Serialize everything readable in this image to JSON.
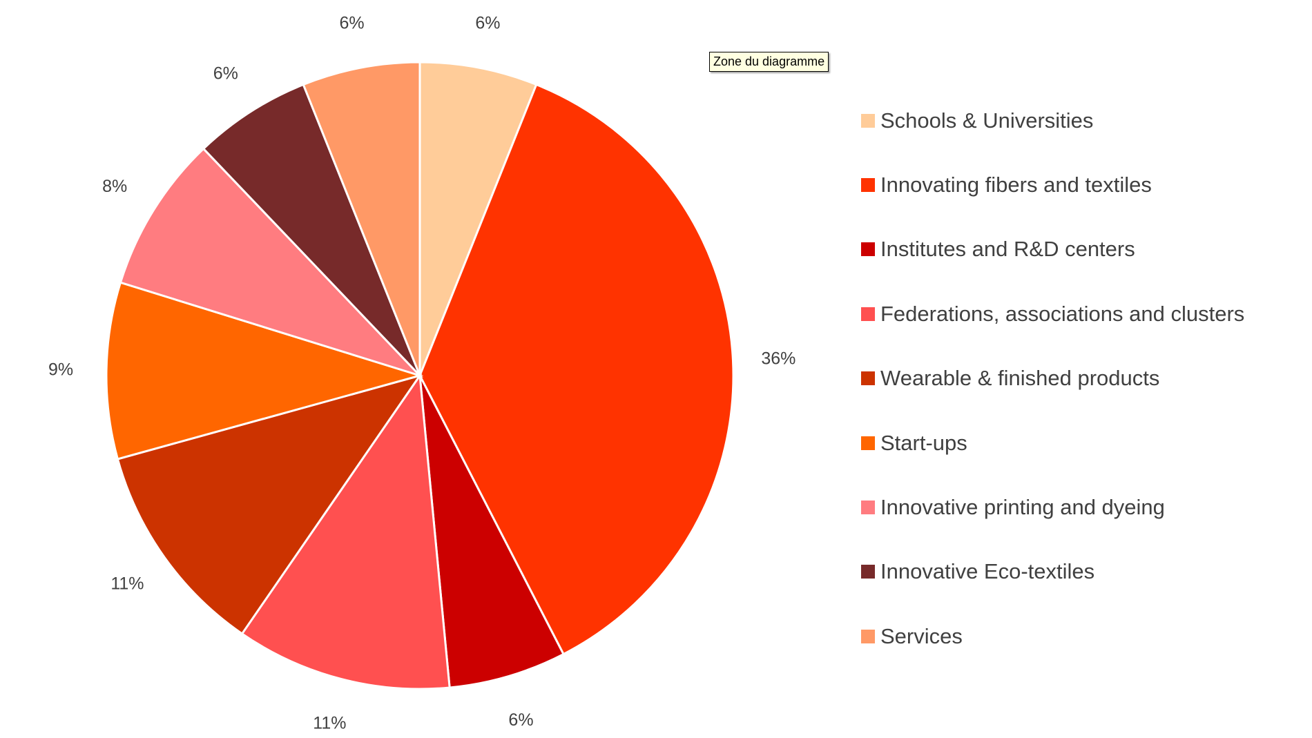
{
  "tooltip": "Zone du diagramme",
  "chart_data": {
    "type": "pie",
    "categories": [
      "Schools & Universities",
      "Innovating fibers and textiles",
      "Institutes and R&D centers",
      "Federations, associations and clusters",
      "Wearable & finished products",
      "Start-ups",
      "Innovative printing and dyeing",
      "Innovative Eco-textiles",
      "Services"
    ],
    "values": [
      6,
      36,
      6,
      11,
      11,
      9,
      8,
      6,
      6
    ],
    "labels": [
      "6%",
      "36%",
      "6%",
      "11%",
      "11%",
      "9%",
      "8%",
      "6%",
      "6%"
    ],
    "colors": [
      "#ffcc99",
      "#ff3300",
      "#cc0000",
      "#ff5050",
      "#cc3300",
      "#ff6600",
      "#ff7c80",
      "#772a2a",
      "#ff9966"
    ],
    "legend_position": "right",
    "title": ""
  }
}
